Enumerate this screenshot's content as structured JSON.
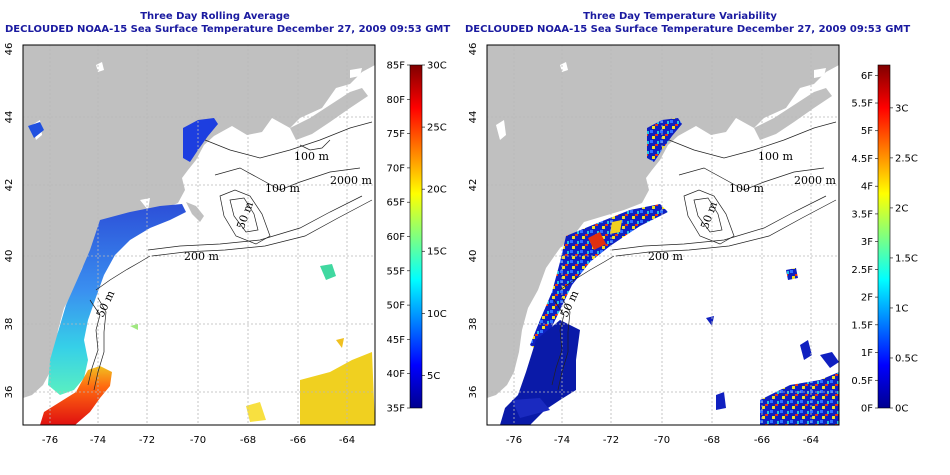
{
  "left_panel": {
    "title_line1": "Three Day Rolling Average",
    "title_line2": "DECLOUDED NOAA-15 Sea Surface Temperature December 27, 2009 09:53 GMT",
    "colorbar_f_labels": [
      "35F",
      "40F",
      "45F",
      "50F",
      "55F",
      "60F",
      "65F",
      "70F",
      "75F",
      "80F",
      "85F"
    ],
    "colorbar_c_labels": [
      "5C",
      "10C",
      "15C",
      "20C",
      "25C",
      "30C"
    ]
  },
  "right_panel": {
    "title_line1": "Three Day Temperature Variability",
    "title_line2": "DECLOUDED NOAA-15 Sea Surface Temperature December 27, 2009 09:53 GMT",
    "colorbar_f_labels": [
      "0F",
      "0.5F",
      "1F",
      "1.5F",
      "2F",
      "2.5F",
      "3F",
      "3.5F",
      "4F",
      "4.5F",
      "5F",
      "5.5F",
      "6F"
    ],
    "colorbar_c_labels": [
      "0C",
      "0.5C",
      "1C",
      "1.5C",
      "2C",
      "2.5C",
      "3C"
    ]
  },
  "map": {
    "lon_ticks": [
      "-76",
      "-74",
      "-72",
      "-70",
      "-68",
      "-66",
      "-64"
    ],
    "lat_ticks": [
      "36",
      "38",
      "40",
      "42",
      "44",
      "46"
    ],
    "contour_labels": [
      "100 m",
      "100 m",
      "2000 m",
      "50 m",
      "200 m",
      "50 m"
    ]
  },
  "colors": {
    "land": "#c0c0c0",
    "title": "#1a1aa0",
    "grid": "#b8b8b8"
  }
}
